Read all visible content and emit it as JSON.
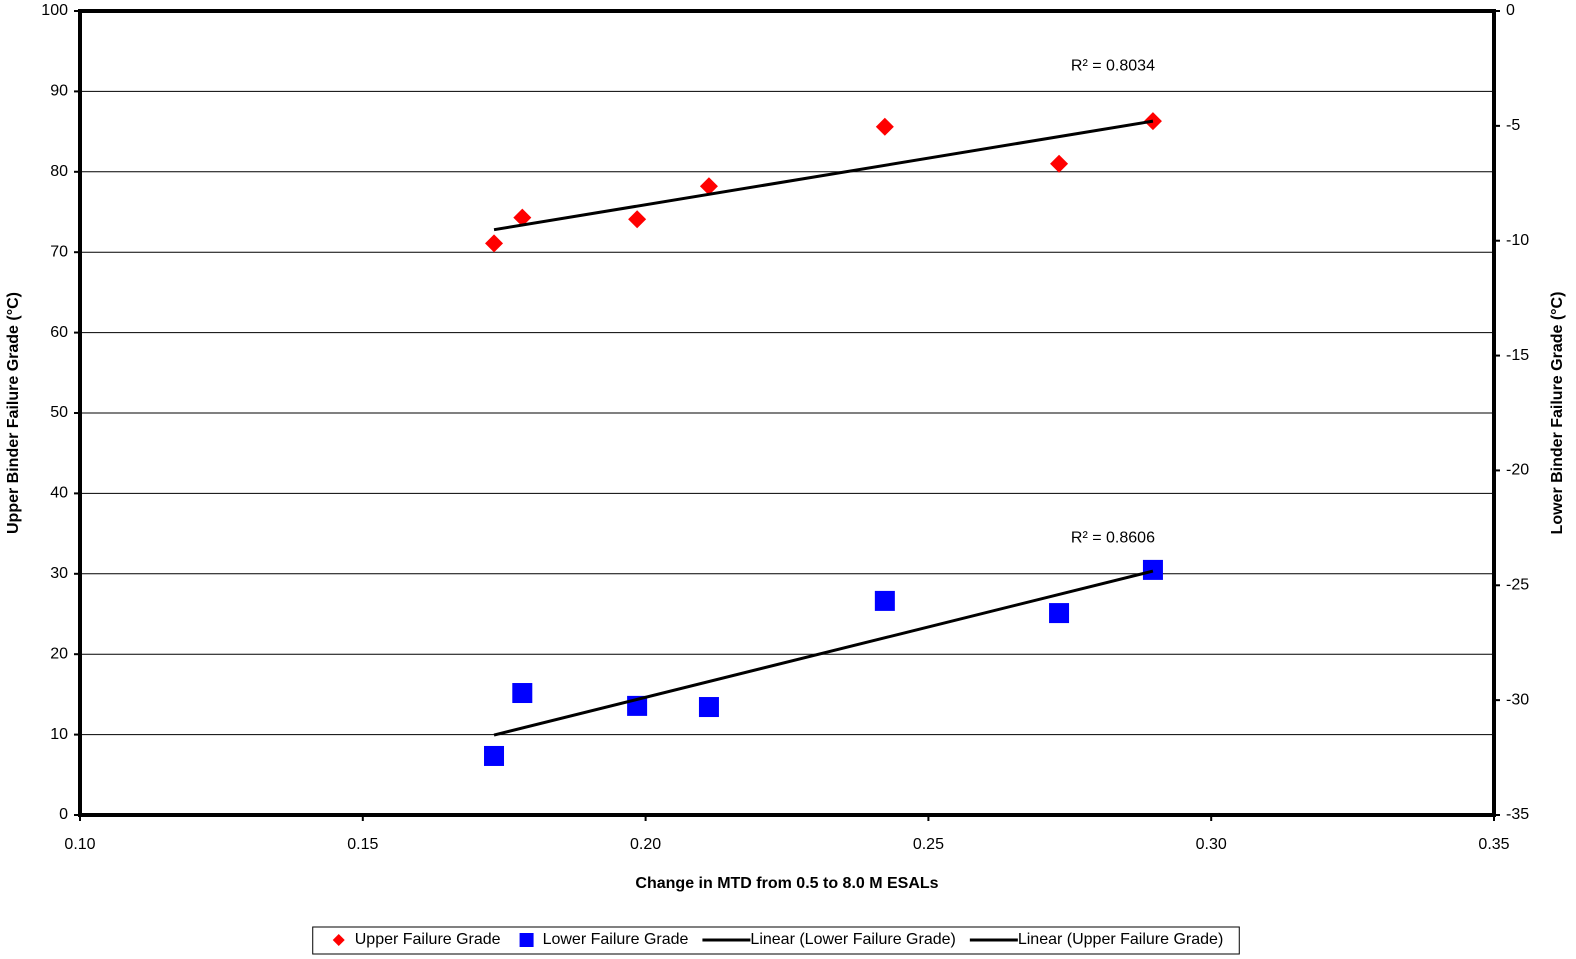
{
  "chart_data": {
    "type": "scatter",
    "x_label": "Change in MTD from 0.5 to 8.0 M ESALs",
    "y_label": "Upper Binder Failure Grade (°C)",
    "y2_label": "Lower Binder Failure Grade (°C)",
    "xlim": [
      0.1,
      0.35
    ],
    "xticks": [
      {
        "value": 0.1,
        "label": "0.10"
      },
      {
        "value": 0.15,
        "label": "0.15"
      },
      {
        "value": 0.2,
        "label": "0.20"
      },
      {
        "value": 0.25,
        "label": "0.25"
      },
      {
        "value": 0.3,
        "label": "0.30"
      },
      {
        "value": 0.35,
        "label": "0.35"
      }
    ],
    "ylim": [
      0,
      100
    ],
    "yticks": [
      0,
      10,
      20,
      30,
      40,
      50,
      60,
      70,
      80,
      90,
      100
    ],
    "y2lim": [
      -35,
      0
    ],
    "y2ticks": [
      -35,
      -30,
      -25,
      -20,
      -15,
      -10,
      -5,
      0
    ],
    "grid": true,
    "legend": "bottom",
    "series": [
      {
        "name": "Upper Failure Grade",
        "type": "scatter",
        "marker": "diamond",
        "color": "#ff0000",
        "x": [
          0.1732,
          0.1782,
          0.1985,
          0.2112,
          0.2423,
          0.2731,
          0.2897
        ],
        "values": [
          71.1,
          74.3,
          74.1,
          78.2,
          85.6,
          81.0,
          86.3
        ]
      },
      {
        "name": "Lower Failure Grade",
        "type": "scatter",
        "marker": "square",
        "color": "#0000ff",
        "axis": "y2",
        "x": [
          0.1732,
          0.1782,
          0.1985,
          0.2112,
          0.2423,
          0.2731,
          0.2897
        ],
        "values": [
          -32.43,
          -29.69,
          -30.25,
          -30.3,
          -25.68,
          -26.21,
          -24.33
        ]
      },
      {
        "name": "Linear (Lower Failure Grade)",
        "type": "line",
        "color": "#000000",
        "axis": "y2",
        "x": [
          0.1732,
          0.2897
        ],
        "values": [
          -31.52,
          -24.38
        ],
        "label": "R² = 0.8606"
      },
      {
        "name": "Linear (Upper Failure Grade)",
        "type": "line",
        "color": "#000000",
        "x": [
          0.1732,
          0.2897
        ],
        "values": [
          72.8,
          86.3
        ],
        "label": "R² = 0.8034"
      }
    ]
  }
}
